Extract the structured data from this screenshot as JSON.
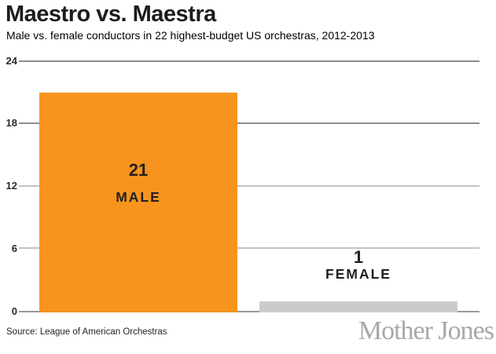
{
  "header": {
    "title": "Maestro vs. Maestra",
    "subtitle": "Male vs. female conductors in 22 highest-budget US orchestras, 2012-2013"
  },
  "chart_data": {
    "type": "bar",
    "title": "Maestro vs. Maestra",
    "subtitle": "Male vs. female conductors in 22 highest-budget US orchestras, 2012-2013",
    "categories": [
      "MALE",
      "FEMALE"
    ],
    "values": [
      21,
      1
    ],
    "value_labels": [
      "21",
      "1"
    ],
    "bar_colors": [
      "#F7941E",
      "#CBCBCB"
    ],
    "xlabel": "",
    "ylabel": "",
    "ylim": [
      0,
      24
    ],
    "yticks": [
      0,
      6,
      12,
      18,
      24
    ],
    "grid": true,
    "legend_position": "none"
  },
  "footer": {
    "source": "Source: League of American Orchestras",
    "brand": "Mother Jones"
  },
  "colors": {
    "male_bar": "#F7941E",
    "female_bar": "#CBCBCB",
    "gridline_dark": "#8D8D8D",
    "gridline_light": "#C3C3C3",
    "brand_gray": "#A6A8AB",
    "text_dark": "#231F20"
  }
}
